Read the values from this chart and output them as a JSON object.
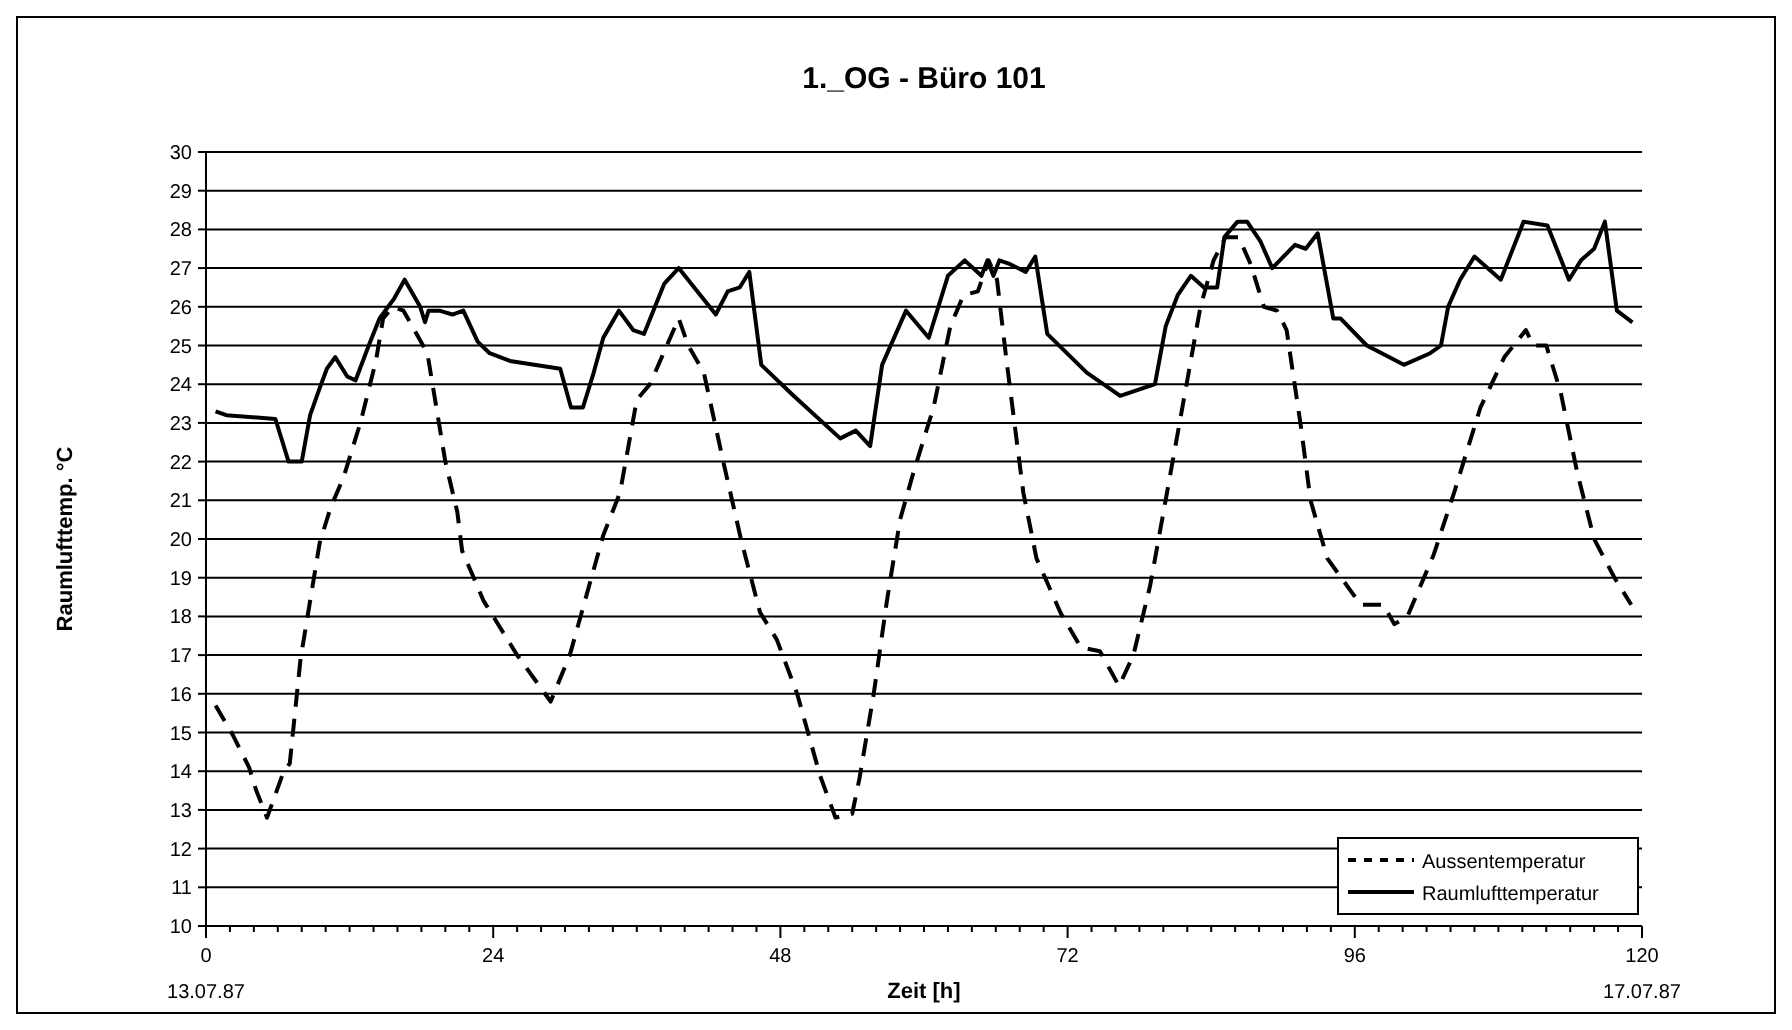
{
  "chart_data": {
    "type": "line",
    "title": "1._OG - Büro 101",
    "xlabel": "Zeit [h]",
    "ylabel": "Raumlufttemp. °C",
    "annotations": [
      "13.07.87",
      "17.07.87"
    ],
    "xlim": [
      0,
      120
    ],
    "xticks": [
      0,
      {
        "value": 2,
        "label": null
      },
      {
        "value": 4,
        "label": null
      },
      {
        "value": 6,
        "label": null
      },
      {
        "value": 8,
        "label": null
      },
      {
        "value": 10,
        "label": null
      },
      {
        "value": 12,
        "label": null
      },
      {
        "value": 14,
        "label": null
      },
      {
        "value": 16,
        "label": null
      },
      {
        "value": 18,
        "label": null
      },
      {
        "value": 20,
        "label": null
      },
      {
        "value": 22,
        "label": null
      },
      24,
      {
        "value": 26,
        "label": null
      },
      {
        "value": 28,
        "label": null
      },
      {
        "value": 30,
        "label": null
      },
      {
        "value": 32,
        "label": null
      },
      {
        "value": 34,
        "label": null
      },
      {
        "value": 36,
        "label": null
      },
      {
        "value": 38,
        "label": null
      },
      {
        "value": 40,
        "label": null
      },
      {
        "value": 42,
        "label": null
      },
      {
        "value": 44,
        "label": null
      },
      {
        "value": 46,
        "label": null
      },
      48,
      {
        "value": 50,
        "label": null
      },
      {
        "value": 52,
        "label": null
      },
      {
        "value": 54,
        "label": null
      },
      {
        "value": 56,
        "label": null
      },
      {
        "value": 58,
        "label": null
      },
      {
        "value": 60,
        "label": null
      },
      {
        "value": 62,
        "label": null
      },
      {
        "value": 64,
        "label": null
      },
      {
        "value": 66,
        "label": null
      },
      {
        "value": 68,
        "label": null
      },
      {
        "value": 70,
        "label": null
      },
      72,
      {
        "value": 74,
        "label": null
      },
      {
        "value": 76,
        "label": null
      },
      {
        "value": 78,
        "label": null
      },
      {
        "value": 80,
        "label": null
      },
      {
        "value": 82,
        "label": null
      },
      {
        "value": 84,
        "label": null
      },
      {
        "value": 86,
        "label": null
      },
      {
        "value": 88,
        "label": null
      },
      {
        "value": 90,
        "label": null
      },
      {
        "value": 92,
        "label": null
      },
      {
        "value": 94,
        "label": null
      },
      96,
      {
        "value": 98,
        "label": null
      },
      {
        "value": 100,
        "label": null
      },
      {
        "value": 102,
        "label": null
      },
      {
        "value": 104,
        "label": null
      },
      {
        "value": 106,
        "label": null
      },
      {
        "value": 108,
        "label": null
      },
      {
        "value": 110,
        "label": null
      },
      {
        "value": 112,
        "label": null
      },
      {
        "value": 114,
        "label": null
      },
      {
        "value": 116,
        "label": null
      },
      {
        "value": 118,
        "label": null
      },
      120
    ],
    "ylim": [
      10,
      30
    ],
    "yticks": [
      10,
      11,
      12,
      13,
      14,
      15,
      16,
      17,
      18,
      19,
      20,
      21,
      22,
      23,
      24,
      25,
      26,
      27,
      28,
      29,
      30
    ],
    "grid": "y",
    "legend": "bottom right",
    "marker": "none",
    "series": [
      {
        "name": "Aussentemperatur",
        "color": "#000000",
        "line_style": "dashed",
        "x": [
          0.8,
          2.3,
          3.6,
          4.2,
          5.1,
          6.5,
          7.0,
          7.9,
          9.5,
          10.4,
          11.5,
          12.9,
          14.2,
          14.8,
          15.6,
          16.5,
          17.6,
          18.5,
          20.0,
          21.0,
          21.4,
          23.2,
          24.6,
          26.0,
          28.8,
          30.4,
          33.2,
          34.6,
          36.0,
          37.1,
          39.5,
          40.3,
          41.6,
          43.3,
          44.7,
          46.3,
          47.7,
          49.4,
          51.3,
          52.6,
          54.0,
          54.6,
          55.8,
          56.9,
          58.0,
          59.1,
          60.8,
          62.2,
          63.3,
          64.5,
          65.4,
          66.1,
          66.9,
          68.3,
          69.4,
          71.4,
          73.1,
          74.7,
          76.3,
          77.5,
          78.9,
          80.6,
          82.0,
          83.1,
          84.2,
          85.2,
          86.3,
          87.3,
          88.4,
          89.5,
          90.3,
          91.5,
          92.3,
          93.7,
          96.5,
          98.4,
          99.3,
          100.4,
          102.6,
          104.3,
          106.5,
          108.5,
          110.3,
          110.9,
          112.0,
          113.2,
          114.6,
          116.0,
          117.7,
          119.1
        ],
        "values": [
          15.7,
          14.9,
          14.1,
          13.5,
          12.8,
          14.0,
          14.2,
          16.9,
          19.9,
          20.8,
          21.6,
          23.0,
          24.6,
          25.7,
          26.0,
          25.9,
          25.3,
          24.8,
          22.0,
          20.7,
          19.7,
          18.4,
          17.7,
          17.0,
          15.8,
          17.0,
          20.1,
          21.2,
          23.6,
          24.0,
          25.7,
          25.0,
          24.3,
          21.9,
          20.0,
          18.1,
          17.4,
          16.0,
          13.9,
          12.8,
          12.9,
          13.8,
          16.0,
          18.4,
          20.5,
          21.7,
          23.4,
          25.5,
          26.3,
          26.4,
          27.2,
          26.7,
          24.6,
          21.2,
          19.5,
          18.1,
          17.2,
          17.1,
          16.2,
          17.0,
          18.8,
          21.7,
          24.1,
          26.0,
          27.2,
          27.8,
          27.8,
          27.1,
          26.0,
          25.9,
          25.4,
          22.9,
          21.0,
          19.5,
          18.3,
          18.3,
          17.8,
          18.0,
          19.6,
          21.2,
          23.4,
          24.7,
          25.4,
          25.0,
          25.0,
          23.8,
          21.7,
          20.0,
          19.0,
          18.3
        ]
      },
      {
        "name": "Raumlufttemperatur",
        "color": "#000000",
        "line_style": "solid",
        "x": [
          0.8,
          1.7,
          5.8,
          6.9,
          8.0,
          8.7,
          9.5,
          10.1,
          10.8,
          11.8,
          12.5,
          13.6,
          14.5,
          15.7,
          16.6,
          17.9,
          18.3,
          18.6,
          19.5,
          20.6,
          21.5,
          22.7,
          23.7,
          25.4,
          29.6,
          30.5,
          31.5,
          32.4,
          33.2,
          34.5,
          35.7,
          36.6,
          38.3,
          39.5,
          40.8,
          42.6,
          43.6,
          44.6,
          45.4,
          46.4,
          49.1,
          53.0,
          54.3,
          55.5,
          56.5,
          58.5,
          60.4,
          62.0,
          63.4,
          64.8,
          65.3,
          65.8,
          66.3,
          67.2,
          68.5,
          69.3,
          70.3,
          73.6,
          76.4,
          79.3,
          80.2,
          81.2,
          82.3,
          83.4,
          84.5,
          85.1,
          86.2,
          87.0,
          88.1,
          89.1,
          91.0,
          91.9,
          92.9,
          94.2,
          94.8,
          97.0,
          100.1,
          102.3,
          103.2,
          103.8,
          104.8,
          106.0,
          108.2,
          110.1,
          112.1,
          113.9,
          114.9,
          116.0,
          116.9,
          117.9,
          119.2
        ],
        "values": [
          23.3,
          23.2,
          23.1,
          22.0,
          22.0,
          23.2,
          23.9,
          24.4,
          24.7,
          24.2,
          24.1,
          25.0,
          25.7,
          26.2,
          26.7,
          26.0,
          25.6,
          25.9,
          25.9,
          25.8,
          25.9,
          25.1,
          24.8,
          24.6,
          24.4,
          23.4,
          23.4,
          24.3,
          25.2,
          25.9,
          25.4,
          25.3,
          26.6,
          27.0,
          26.5,
          25.8,
          26.4,
          26.5,
          26.9,
          24.5,
          23.7,
          22.6,
          22.8,
          22.4,
          24.5,
          25.9,
          25.2,
          26.8,
          27.2,
          26.8,
          27.2,
          26.8,
          27.2,
          27.1,
          26.9,
          27.3,
          25.3,
          24.3,
          23.7,
          24.0,
          25.5,
          26.3,
          26.8,
          26.5,
          26.5,
          27.8,
          28.2,
          28.2,
          27.7,
          27.0,
          27.6,
          27.5,
          27.9,
          25.7,
          25.7,
          25.0,
          24.5,
          24.8,
          25.0,
          26.0,
          26.7,
          27.3,
          26.7,
          28.2,
          28.1,
          26.7,
          27.2,
          27.5,
          28.2,
          25.9,
          25.6
        ]
      }
    ]
  }
}
